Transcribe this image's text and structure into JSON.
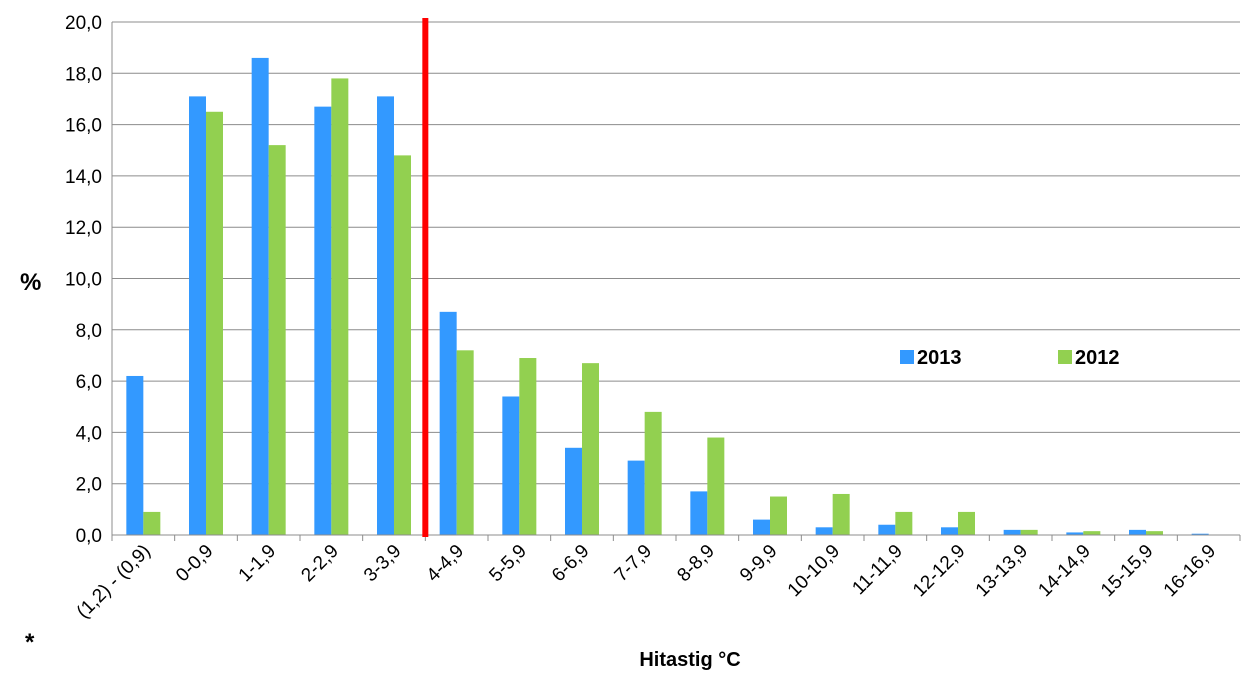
{
  "chart_data": {
    "type": "bar",
    "title": "",
    "xlabel": "Hitastig °C",
    "ylabel": "%",
    "footnote": "*",
    "ylim": [
      0,
      20
    ],
    "yticks": [
      "0,0",
      "2,0",
      "4,0",
      "6,0",
      "8,0",
      "10,0",
      "12,0",
      "14,0",
      "16,0",
      "18,0",
      "20,0"
    ],
    "categories": [
      "(1,2) - (0,9)",
      "0-0,9",
      "1-1,9",
      "2-2,9",
      "3-3,9",
      "4-4,9",
      "5-5,9",
      "6-6,9",
      "7-7,9",
      "8-8,9",
      "9-9,9",
      "10-10,9",
      "11-11,9",
      "12-12,9",
      "13-13,9",
      "14-14,9",
      "15-15,9",
      "16-16,9"
    ],
    "series": [
      {
        "name": "2013",
        "color": "#3399ff",
        "values": [
          6.2,
          17.1,
          18.6,
          16.7,
          17.1,
          8.7,
          5.4,
          3.4,
          2.9,
          1.7,
          0.6,
          0.3,
          0.4,
          0.3,
          0.2,
          0.1,
          0.2,
          0.05
        ]
      },
      {
        "name": "2012",
        "color": "#92d050",
        "values": [
          0.9,
          16.5,
          15.2,
          17.8,
          14.8,
          7.2,
          6.9,
          6.7,
          4.8,
          3.8,
          1.5,
          1.6,
          0.9,
          0.9,
          0.2,
          0.15,
          0.15,
          0.0
        ]
      }
    ],
    "marker": {
      "between_categories": [
        "3-3,9",
        "4-4,9"
      ],
      "color": "#ff0000"
    },
    "grid": true,
    "legend_position": "right-middle"
  }
}
